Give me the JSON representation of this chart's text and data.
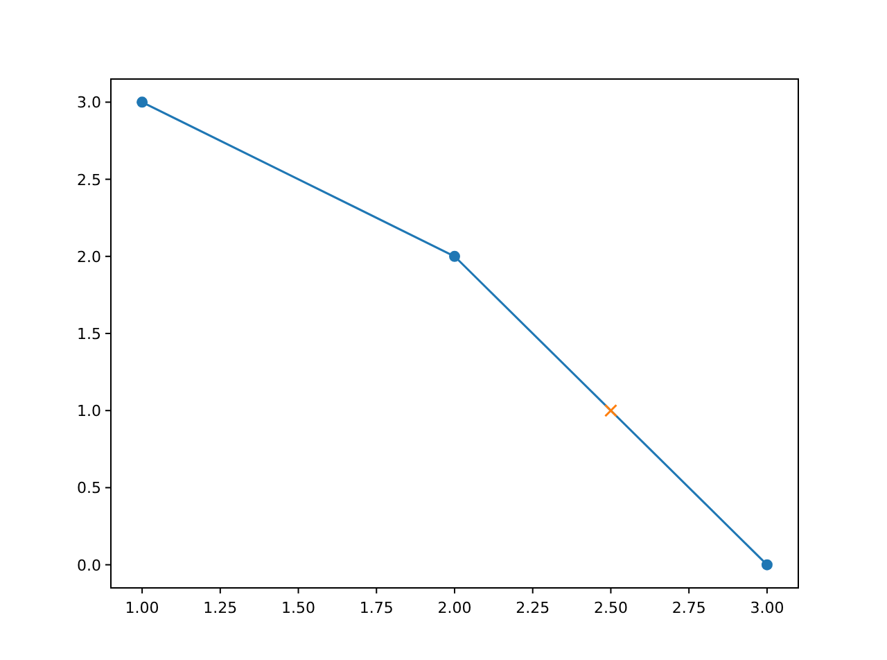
{
  "chart_data": {
    "type": "line",
    "series": [
      {
        "type": "line",
        "color": "#1f77b4",
        "marker": "circle",
        "x": [
          1,
          2,
          3
        ],
        "values": [
          3,
          2,
          0
        ]
      },
      {
        "type": "scatter",
        "color": "#ff7f0e",
        "marker": "cross",
        "x": [
          2.5
        ],
        "values": [
          1
        ]
      }
    ],
    "xlim": [
      0.9,
      3.1
    ],
    "ylim": [
      -0.15,
      3.15
    ],
    "xticks": [
      {
        "value": 1,
        "label": "1.00"
      },
      {
        "value": 1.25,
        "label": "1.25"
      },
      {
        "value": 1.5,
        "label": "1.50"
      },
      {
        "value": 1.75,
        "label": "1.75"
      },
      {
        "value": 2,
        "label": "2.00"
      },
      {
        "value": 2.25,
        "label": "2.25"
      },
      {
        "value": 2.5,
        "label": "2.50"
      },
      {
        "value": 2.75,
        "label": "2.75"
      },
      {
        "value": 3,
        "label": "3.00"
      }
    ],
    "yticks": [
      {
        "value": 0,
        "label": "0.0"
      },
      {
        "value": 0.5,
        "label": "0.5"
      },
      {
        "value": 1,
        "label": "1.0"
      },
      {
        "value": 1.5,
        "label": "1.5"
      },
      {
        "value": 2,
        "label": "2.0"
      },
      {
        "value": 2.5,
        "label": "2.5"
      },
      {
        "value": 3,
        "label": "3.0"
      }
    ],
    "grid": false
  }
}
